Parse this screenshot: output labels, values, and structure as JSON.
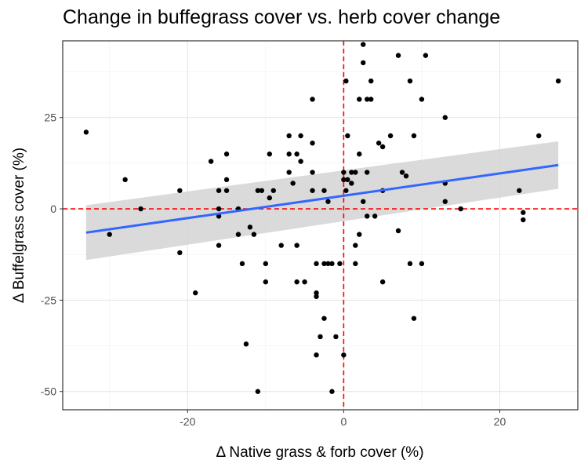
{
  "chart_data": {
    "type": "scatter",
    "title": "Change in buffegrass cover vs. herb cover change",
    "xlabel": "Δ Native grass & forb cover (%)",
    "ylabel": "Δ Buffelgrass cover (%)",
    "xlim": [
      -36,
      30
    ],
    "ylim": [
      -55,
      46
    ],
    "xticks": [
      -20,
      0,
      20
    ],
    "xtick_labels": [
      "-20",
      "0",
      "20"
    ],
    "yticks": [
      -50,
      -25,
      0,
      25
    ],
    "ytick_labels": [
      "-50",
      "-25",
      "0",
      "25"
    ],
    "grid": true,
    "reference_lines": {
      "x": 0,
      "y": 0,
      "color": "#ff0000",
      "style": "dashed"
    },
    "colors": {
      "points": "#000000",
      "fit_line": "#3366ff",
      "confidence_band": "#d3d3d3",
      "reference": "#ff0000"
    },
    "fit": {
      "x": [
        -33,
        27.5
      ],
      "y": [
        -6.5,
        12
      ],
      "ci_lower": [
        -14,
        5.5
      ],
      "ci_upper": [
        1,
        18.5
      ]
    },
    "points": [
      [
        -33,
        21
      ],
      [
        -28,
        8
      ],
      [
        -30,
        -7
      ],
      [
        -26,
        0
      ],
      [
        -21,
        5
      ],
      [
        -21,
        -12
      ],
      [
        -19,
        -23
      ],
      [
        -17,
        13
      ],
      [
        -16,
        5
      ],
      [
        -16,
        0
      ],
      [
        -16,
        -2
      ],
      [
        -16,
        -10
      ],
      [
        -15,
        15
      ],
      [
        -15,
        8
      ],
      [
        -15,
        5
      ],
      [
        -13.5,
        0
      ],
      [
        -13.5,
        -7
      ],
      [
        -13,
        -15
      ],
      [
        -12.5,
        -37
      ],
      [
        -12,
        -5
      ],
      [
        -11.5,
        -7
      ],
      [
        -11,
        5
      ],
      [
        -11,
        -50
      ],
      [
        -10.5,
        5
      ],
      [
        -10,
        -15
      ],
      [
        -10,
        -20
      ],
      [
        -9.5,
        15
      ],
      [
        -9.5,
        3
      ],
      [
        -9,
        5
      ],
      [
        -8,
        -10
      ],
      [
        -7,
        20
      ],
      [
        -7,
        15
      ],
      [
        -7,
        10
      ],
      [
        -6.5,
        7
      ],
      [
        -6,
        15
      ],
      [
        -6,
        -10
      ],
      [
        -6,
        -20
      ],
      [
        -5.5,
        20
      ],
      [
        -5.5,
        13
      ],
      [
        -5,
        -20
      ],
      [
        -4,
        30
      ],
      [
        -4,
        18
      ],
      [
        -4,
        10
      ],
      [
        -4,
        5
      ],
      [
        -3.5,
        -15
      ],
      [
        -3.5,
        -23
      ],
      [
        -3.5,
        -24
      ],
      [
        -3.5,
        -40
      ],
      [
        -3,
        -35
      ],
      [
        -2.5,
        -30
      ],
      [
        -2.5,
        5
      ],
      [
        -2.5,
        -15
      ],
      [
        -2,
        -15
      ],
      [
        -2,
        2
      ],
      [
        -1.5,
        -50
      ],
      [
        -1.5,
        -15
      ],
      [
        -1,
        -35
      ],
      [
        -0.5,
        -15
      ],
      [
        0,
        -40
      ],
      [
        0,
        10
      ],
      [
        0,
        8
      ],
      [
        0.3,
        35
      ],
      [
        0.3,
        5
      ],
      [
        0.5,
        20
      ],
      [
        0.5,
        8
      ],
      [
        1,
        10
      ],
      [
        1,
        7
      ],
      [
        1.5,
        10
      ],
      [
        1.5,
        -10
      ],
      [
        1.5,
        -15
      ],
      [
        2,
        15
      ],
      [
        2,
        -7
      ],
      [
        2,
        30
      ],
      [
        2.5,
        45
      ],
      [
        2.5,
        40
      ],
      [
        2.5,
        2
      ],
      [
        3,
        30
      ],
      [
        3,
        10
      ],
      [
        3,
        -2
      ],
      [
        3.5,
        30
      ],
      [
        3.5,
        35
      ],
      [
        4,
        -2
      ],
      [
        4.5,
        18
      ],
      [
        5,
        17
      ],
      [
        5,
        5
      ],
      [
        5,
        -20
      ],
      [
        6,
        20
      ],
      [
        7,
        42
      ],
      [
        7,
        -6
      ],
      [
        7.5,
        10
      ],
      [
        8,
        9
      ],
      [
        8.5,
        -15
      ],
      [
        8.5,
        35
      ],
      [
        9,
        -30
      ],
      [
        9,
        20
      ],
      [
        10,
        30
      ],
      [
        10,
        -15
      ],
      [
        10.5,
        42
      ],
      [
        13,
        25
      ],
      [
        13,
        7
      ],
      [
        13,
        2
      ],
      [
        15,
        0
      ],
      [
        22.5,
        5
      ],
      [
        23,
        -1
      ],
      [
        23,
        -3
      ],
      [
        25,
        20
      ],
      [
        27.5,
        35
      ]
    ]
  }
}
